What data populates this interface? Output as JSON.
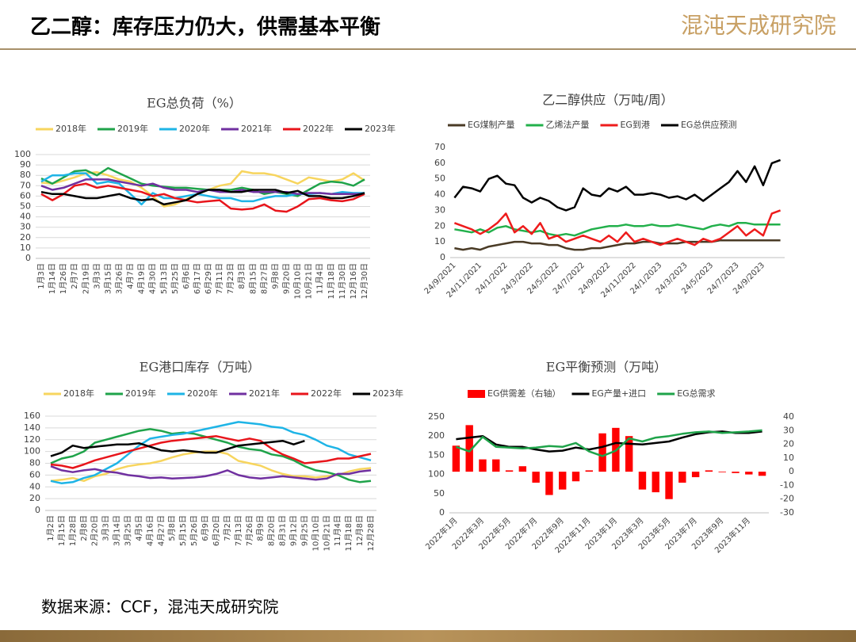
{
  "header": {
    "title": "乙二醇：库存压力仍大，供需基本平衡",
    "logo": "混沌天成研究院"
  },
  "footer": {
    "source": "数据来源：CCF，混沌天成研究院"
  },
  "chart_data": [
    {
      "type": "line",
      "title": "EG总负荷（%）",
      "grid": true,
      "categories": [
        "1月3日",
        "1月14日",
        "1月26日",
        "2月7日",
        "2月19日",
        "3月3日",
        "3月15日",
        "3月26日",
        "4月7日",
        "4月19日",
        "4月30日",
        "5月13日",
        "5月25日",
        "6月6日",
        "6月17日",
        "6月29日",
        "7月11日",
        "7月23日",
        "8月3日",
        "8月15日",
        "8月27日",
        "9月8日",
        "9月20日",
        "10月10日",
        "10月21日",
        "11月4日",
        "11月18日",
        "11月30日",
        "12月16日",
        "12月30日"
      ],
      "ylim": [
        0,
        100
      ],
      "yticks": [
        0,
        10,
        20,
        30,
        40,
        50,
        60,
        70,
        80,
        90,
        100
      ],
      "series": [
        {
          "name": "2018年",
          "color": "#f7d55e",
          "values": [
            73,
            72,
            75,
            78,
            82,
            83,
            80,
            76,
            74,
            68,
            60,
            50,
            52,
            57,
            62,
            66,
            70,
            72,
            84,
            82,
            82,
            80,
            76,
            72,
            78,
            76,
            74,
            76,
            82,
            75
          ]
        },
        {
          "name": "2019年",
          "color": "#1fa34a",
          "values": [
            77,
            72,
            78,
            84,
            85,
            80,
            87,
            82,
            77,
            72,
            70,
            69,
            68,
            68,
            67,
            66,
            66,
            66,
            68,
            66,
            62,
            64,
            62,
            60,
            66,
            72,
            74,
            73,
            70,
            76
          ]
        },
        {
          "name": "2020年",
          "color": "#1eb4e6",
          "values": [
            74,
            80,
            80,
            82,
            82,
            72,
            74,
            72,
            62,
            52,
            63,
            58,
            58,
            60,
            62,
            60,
            58,
            58,
            55,
            55,
            58,
            60,
            60,
            62,
            62,
            63,
            62,
            64,
            63,
            63
          ]
        },
        {
          "name": "2021年",
          "color": "#7030a0",
          "values": [
            70,
            66,
            68,
            72,
            76,
            76,
            76,
            74,
            72,
            70,
            72,
            68,
            66,
            66,
            64,
            66,
            64,
            64,
            66,
            64,
            64,
            64,
            64,
            62,
            63,
            63,
            62,
            62,
            62,
            62
          ]
        },
        {
          "name": "2022年",
          "color": "#e8151b",
          "values": [
            62,
            56,
            62,
            70,
            72,
            68,
            70,
            68,
            66,
            64,
            60,
            62,
            58,
            56,
            54,
            55,
            56,
            48,
            47,
            48,
            52,
            46,
            45,
            50,
            57,
            58,
            56,
            55,
            57,
            62
          ]
        },
        {
          "name": "2023年",
          "color": "#000000",
          "values": [
            64,
            62,
            62,
            60,
            58,
            58,
            60,
            62,
            58,
            56,
            57,
            52,
            54,
            56,
            62,
            66,
            66,
            64,
            64,
            66,
            66,
            66,
            63,
            65,
            60,
            60,
            58,
            58,
            60,
            63
          ]
        }
      ]
    },
    {
      "type": "line",
      "title": "乙二醇供应（万吨/周）",
      "grid": false,
      "categories": [
        "24/9/2021",
        null,
        null,
        "24/11/2021",
        null,
        null,
        "24/1/2022",
        null,
        null,
        "24/3/2022",
        null,
        null,
        "24/5/2022",
        null,
        null,
        "24/7/2022",
        null,
        null,
        "24/9/2022",
        null,
        null,
        "24/11/2022",
        null,
        null,
        "24/1/2023",
        null,
        null,
        "24/3/2023",
        null,
        null,
        "24/5/2023",
        null,
        null,
        "24/7/2023",
        null,
        null,
        "24/9/2023",
        null,
        null
      ],
      "ylim": [
        0,
        70
      ],
      "yticks": [
        0,
        10,
        20,
        30,
        40,
        50,
        60,
        70
      ],
      "series": [
        {
          "name": "EG煤制产量",
          "color": "#4a3b26",
          "values": [
            6,
            5,
            6,
            5,
            7,
            8,
            9,
            10,
            10,
            9,
            9,
            8,
            8,
            6,
            5,
            5,
            6,
            6,
            7,
            8,
            9,
            9,
            10,
            10,
            9,
            9,
            9,
            10,
            10,
            10,
            10,
            11,
            11,
            11,
            11,
            11,
            11,
            11,
            11
          ]
        },
        {
          "name": "乙烯法产量",
          "color": "#22b04b",
          "values": [
            18,
            17,
            16,
            18,
            16,
            19,
            20,
            18,
            17,
            16,
            17,
            15,
            14,
            15,
            14,
            16,
            18,
            19,
            20,
            20,
            21,
            20,
            20,
            21,
            20,
            20,
            21,
            20,
            19,
            18,
            20,
            21,
            20,
            22,
            22,
            21,
            21,
            21,
            21
          ]
        },
        {
          "name": "EG到港",
          "color": "#ee1c1c",
          "values": [
            22,
            20,
            18,
            15,
            18,
            22,
            28,
            16,
            20,
            15,
            22,
            12,
            14,
            10,
            12,
            14,
            12,
            10,
            14,
            10,
            16,
            10,
            12,
            10,
            8,
            10,
            12,
            10,
            8,
            12,
            10,
            12,
            16,
            20,
            14,
            18,
            14,
            28,
            30
          ]
        },
        {
          "name": "EG总供应预测",
          "color": "#000000",
          "values": [
            38,
            45,
            44,
            42,
            50,
            52,
            47,
            46,
            38,
            35,
            38,
            36,
            32,
            30,
            32,
            44,
            40,
            39,
            44,
            42,
            45,
            40,
            40,
            41,
            40,
            38,
            39,
            37,
            40,
            36,
            40,
            44,
            48,
            55,
            48,
            58,
            46,
            60,
            62
          ]
        }
      ]
    },
    {
      "type": "line",
      "title": "EG港口库存（万吨）",
      "grid": true,
      "categories": [
        "1月2日",
        "1月15日",
        "1月28日",
        "2月8日",
        "2月20日",
        "3月3日",
        "3月14日",
        "3月25日",
        "4月5日",
        "4月16日",
        "4月27日",
        "5月8日",
        "5月15日",
        "5月26日",
        "6月9日",
        "6月20日",
        "7月2日",
        "7月13日",
        "7月26日",
        "8月9日",
        "8月20日",
        "8月31日",
        "9月12日",
        "9月25日",
        "10月10日",
        "10月21日",
        "11月4日",
        "11月18日",
        "12月8日",
        "12月28日"
      ],
      "ylim": [
        0,
        160
      ],
      "yticks": [
        0,
        20,
        40,
        60,
        80,
        100,
        120,
        140,
        160
      ],
      "series": [
        {
          "name": "2018年",
          "color": "#f7d55e",
          "values": [
            50,
            52,
            55,
            50,
            58,
            62,
            70,
            75,
            78,
            80,
            84,
            90,
            95,
            98,
            100,
            100,
            96,
            84,
            80,
            76,
            68,
            62,
            58,
            58,
            56,
            58,
            60,
            66,
            70,
            72
          ]
        },
        {
          "name": "2019年",
          "color": "#1fa34a",
          "values": [
            80,
            88,
            92,
            100,
            115,
            120,
            125,
            130,
            135,
            138,
            135,
            130,
            132,
            130,
            125,
            120,
            115,
            108,
            104,
            102,
            95,
            92,
            85,
            75,
            68,
            65,
            60,
            52,
            48,
            50
          ]
        },
        {
          "name": "2020年",
          "color": "#1eb4e6",
          "values": [
            50,
            46,
            48,
            55,
            60,
            70,
            80,
            95,
            110,
            122,
            125,
            128,
            130,
            134,
            138,
            142,
            146,
            150,
            148,
            146,
            142,
            140,
            132,
            128,
            120,
            110,
            105,
            95,
            90,
            85
          ]
        },
        {
          "name": "2021年",
          "color": "#7030a0",
          "values": [
            75,
            68,
            65,
            68,
            70,
            66,
            64,
            60,
            58,
            55,
            56,
            54,
            55,
            56,
            58,
            62,
            68,
            60,
            56,
            54,
            56,
            58,
            56,
            54,
            52,
            54,
            62,
            62,
            66,
            68
          ]
        },
        {
          "name": "2022年",
          "color": "#e8151b",
          "values": [
            78,
            76,
            72,
            78,
            85,
            90,
            95,
            100,
            105,
            110,
            115,
            118,
            120,
            122,
            124,
            126,
            122,
            118,
            122,
            118,
            105,
            95,
            88,
            80,
            82,
            84,
            88,
            88,
            92,
            96
          ]
        },
        {
          "name": "2023年",
          "color": "#000000",
          "values": [
            92,
            98,
            110,
            106,
            108,
            110,
            112,
            112,
            114,
            108,
            102,
            100,
            102,
            100,
            98,
            98,
            104,
            110,
            112,
            114,
            116,
            118,
            112,
            118,
            null,
            null,
            null,
            null,
            null,
            null
          ]
        }
      ]
    },
    {
      "type": "combo",
      "title": "EG平衡预测（万吨）",
      "grid": false,
      "categories": [
        "2022年1月",
        null,
        "2022年3月",
        null,
        "2022年5月",
        null,
        "2022年7月",
        null,
        "2022年9月",
        null,
        "2022年11月",
        null,
        "2023年1月",
        null,
        "2023年3月",
        null,
        "2023年5月",
        null,
        "2023年7月",
        null,
        "2023年9月",
        null,
        "2023年11月",
        null
      ],
      "ylim": [
        0,
        250
      ],
      "yticks": [
        0,
        50,
        100,
        150,
        200,
        250
      ],
      "y2lim": [
        -30,
        40
      ],
      "y2ticks": [
        -30,
        -20,
        -10,
        0,
        10,
        20,
        30,
        40
      ],
      "series": [
        {
          "name": "EG供需差（右轴）",
          "type": "bar",
          "axis": "y2",
          "color": "#ff0000",
          "values": [
            19,
            34,
            9,
            9,
            1,
            4,
            -8,
            -17,
            -13,
            -7,
            1,
            28,
            32,
            26,
            -13,
            -15,
            -20,
            -8,
            -4,
            1,
            0,
            -1,
            -2,
            -3
          ]
        },
        {
          "name": "EG产量+进口",
          "type": "line",
          "color": "#000000",
          "values": [
            192,
            196,
            200,
            178,
            172,
            172,
            165,
            160,
            162,
            170,
            165,
            172,
            182,
            180,
            178,
            182,
            186,
            196,
            205,
            210,
            212,
            208,
            208,
            212
          ]
        },
        {
          "name": "EG总需求",
          "type": "line",
          "color": "#1fa34a",
          "values": [
            172,
            160,
            198,
            172,
            170,
            168,
            170,
            174,
            172,
            182,
            160,
            148,
            162,
            194,
            186,
            196,
            200,
            206,
            210,
            212,
            208,
            210,
            212,
            215
          ]
        }
      ]
    }
  ]
}
